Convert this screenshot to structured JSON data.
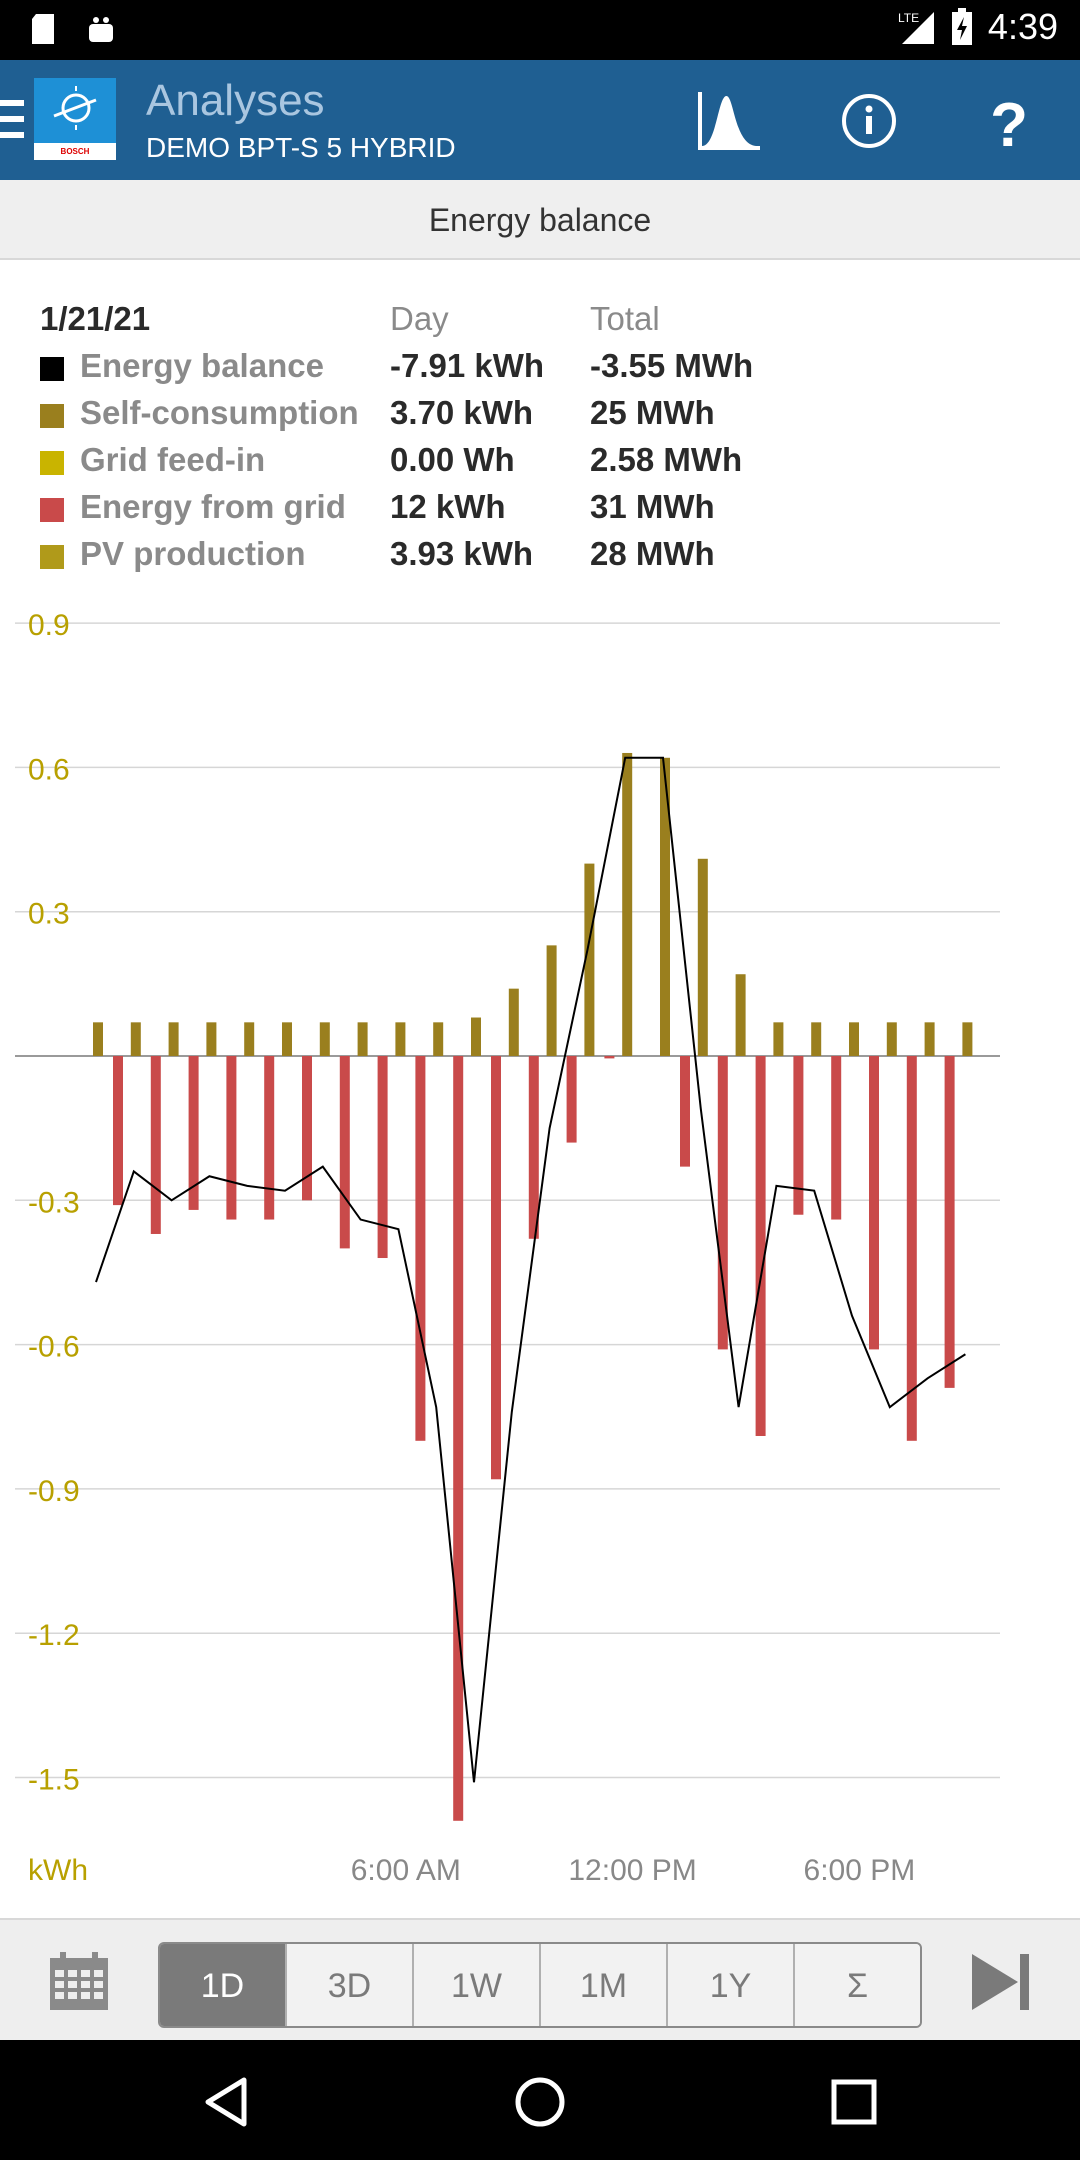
{
  "status_bar": {
    "time": "4:39",
    "network": "LTE"
  },
  "app_bar": {
    "title": "Analyses",
    "subtitle": "DEMO BPT-S 5 HYBRID",
    "logo_text": "BOSCH",
    "buttons": [
      "chart-icon",
      "info-icon",
      "help-icon"
    ]
  },
  "sub_header": "Energy balance",
  "legend": {
    "date": "1/21/21",
    "col_day": "Day",
    "col_total": "Total",
    "rows": [
      {
        "name": "Energy balance",
        "day": "-7.91 kWh",
        "total": "-3.55 MWh",
        "color": "#000000"
      },
      {
        "name": "Self-consumption",
        "day": "3.70 kWh",
        "total": "25 MWh",
        "color": "#9a7f1e"
      },
      {
        "name": "Grid feed-in",
        "day": "0.00 Wh",
        "total": "2.58 MWh",
        "color": "#c9b400"
      },
      {
        "name": "Energy from grid",
        "day": "12 kWh",
        "total": "31 MWh",
        "color": "#c94a4a"
      },
      {
        "name": "PV production",
        "day": "3.93 kWh",
        "total": "28 MWh",
        "color": "#b09a1a"
      }
    ]
  },
  "chart_data": {
    "type": "bar",
    "title": "Energy balance",
    "ylabel": "kWh",
    "ylim": [
      -1.8,
      0.95
    ],
    "yticks": [
      0.9,
      0.6,
      0.3,
      -0.3,
      -0.6,
      -0.9,
      -1.2,
      -1.5
    ],
    "xtick_labels": [
      "6:00 AM",
      "12:00 PM",
      "6:00 PM"
    ],
    "xtick_hours": [
      6,
      12,
      18
    ],
    "x_hours": [
      0,
      1,
      2,
      3,
      4,
      5,
      6,
      7,
      8,
      9,
      10,
      11,
      12,
      13,
      14,
      15,
      16,
      17,
      18,
      19,
      20,
      21,
      22,
      23
    ],
    "series": [
      {
        "name": "Self-consumption",
        "kind": "bar",
        "values": [
          0.07,
          0.07,
          0.07,
          0.07,
          0.07,
          0.07,
          0.07,
          0.07,
          0.07,
          0.07,
          0.08,
          0.14,
          0.23,
          0.4,
          0.63,
          0.62,
          0.41,
          0.17,
          0.07,
          0.07,
          0.07,
          0.07,
          0.07,
          0.07
        ]
      },
      {
        "name": "Energy from grid",
        "kind": "bar",
        "values": [
          -0.31,
          -0.37,
          -0.32,
          -0.34,
          -0.34,
          -0.3,
          -0.4,
          -0.42,
          -0.8,
          -1.59,
          -0.88,
          -0.38,
          -0.18,
          -0.005,
          0,
          -0.23,
          -0.61,
          -0.79,
          -0.33,
          -0.34,
          -0.61,
          -0.8,
          -0.69,
          0
        ]
      },
      {
        "name": "Energy balance",
        "kind": "line",
        "values": [
          -0.47,
          -0.24,
          -0.3,
          -0.25,
          -0.27,
          -0.28,
          -0.23,
          -0.34,
          -0.36,
          -0.73,
          -1.51,
          -0.74,
          -0.15,
          0.22,
          0.62,
          0.62,
          -0.11,
          -0.73,
          -0.27,
          -0.28,
          -0.54,
          -0.73,
          -0.67,
          -0.62
        ]
      }
    ],
    "colors": {
      "self_consumption": "#9a7f1e",
      "grid": "#c94a4a",
      "line": "#000000",
      "axis_label": "#b8a000",
      "grid_line": "#d6d6d6"
    }
  },
  "toolbar": {
    "ranges": [
      "1D",
      "3D",
      "1W",
      "1M",
      "1Y",
      "Σ"
    ],
    "active": "1D"
  }
}
